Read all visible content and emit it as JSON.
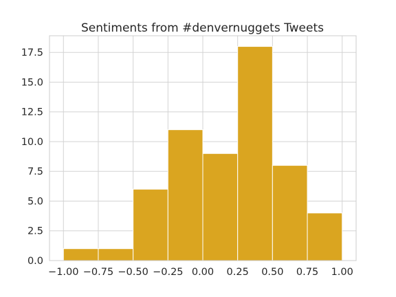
{
  "chart_data": {
    "type": "bar",
    "title": "Sentiments from #denvernuggets Tweets",
    "xlabel": "",
    "ylabel": "",
    "bins": [
      {
        "x0": -1.0,
        "x1": -0.75,
        "count": 1
      },
      {
        "x0": -0.75,
        "x1": -0.5,
        "count": 1
      },
      {
        "x0": -0.5,
        "x1": -0.25,
        "count": 6
      },
      {
        "x0": -0.25,
        "x1": 0.0,
        "count": 11
      },
      {
        "x0": 0.0,
        "x1": 0.25,
        "count": 9
      },
      {
        "x0": 0.25,
        "x1": 0.5,
        "count": 18
      },
      {
        "x0": 0.5,
        "x1": 0.75,
        "count": 8
      },
      {
        "x0": 0.75,
        "x1": 1.0,
        "count": 4
      }
    ],
    "xlim": [
      -1.1,
      1.1
    ],
    "ylim": [
      0,
      18.9
    ],
    "x_ticks": [
      -1.0,
      -0.75,
      -0.5,
      -0.25,
      0.0,
      0.25,
      0.5,
      0.75,
      1.0
    ],
    "x_tick_labels": [
      "−1.00",
      "−0.75",
      "−0.50",
      "−0.25",
      "0.00",
      "0.25",
      "0.50",
      "0.75",
      "1.00"
    ],
    "y_ticks": [
      0.0,
      2.5,
      5.0,
      7.5,
      10.0,
      12.5,
      15.0,
      17.5
    ],
    "y_tick_labels": [
      "0.0",
      "2.5",
      "5.0",
      "7.5",
      "10.0",
      "12.5",
      "15.0",
      "17.5"
    ],
    "grid": true,
    "bar_color": "#daa520",
    "grid_color": "#d3d3d3"
  }
}
